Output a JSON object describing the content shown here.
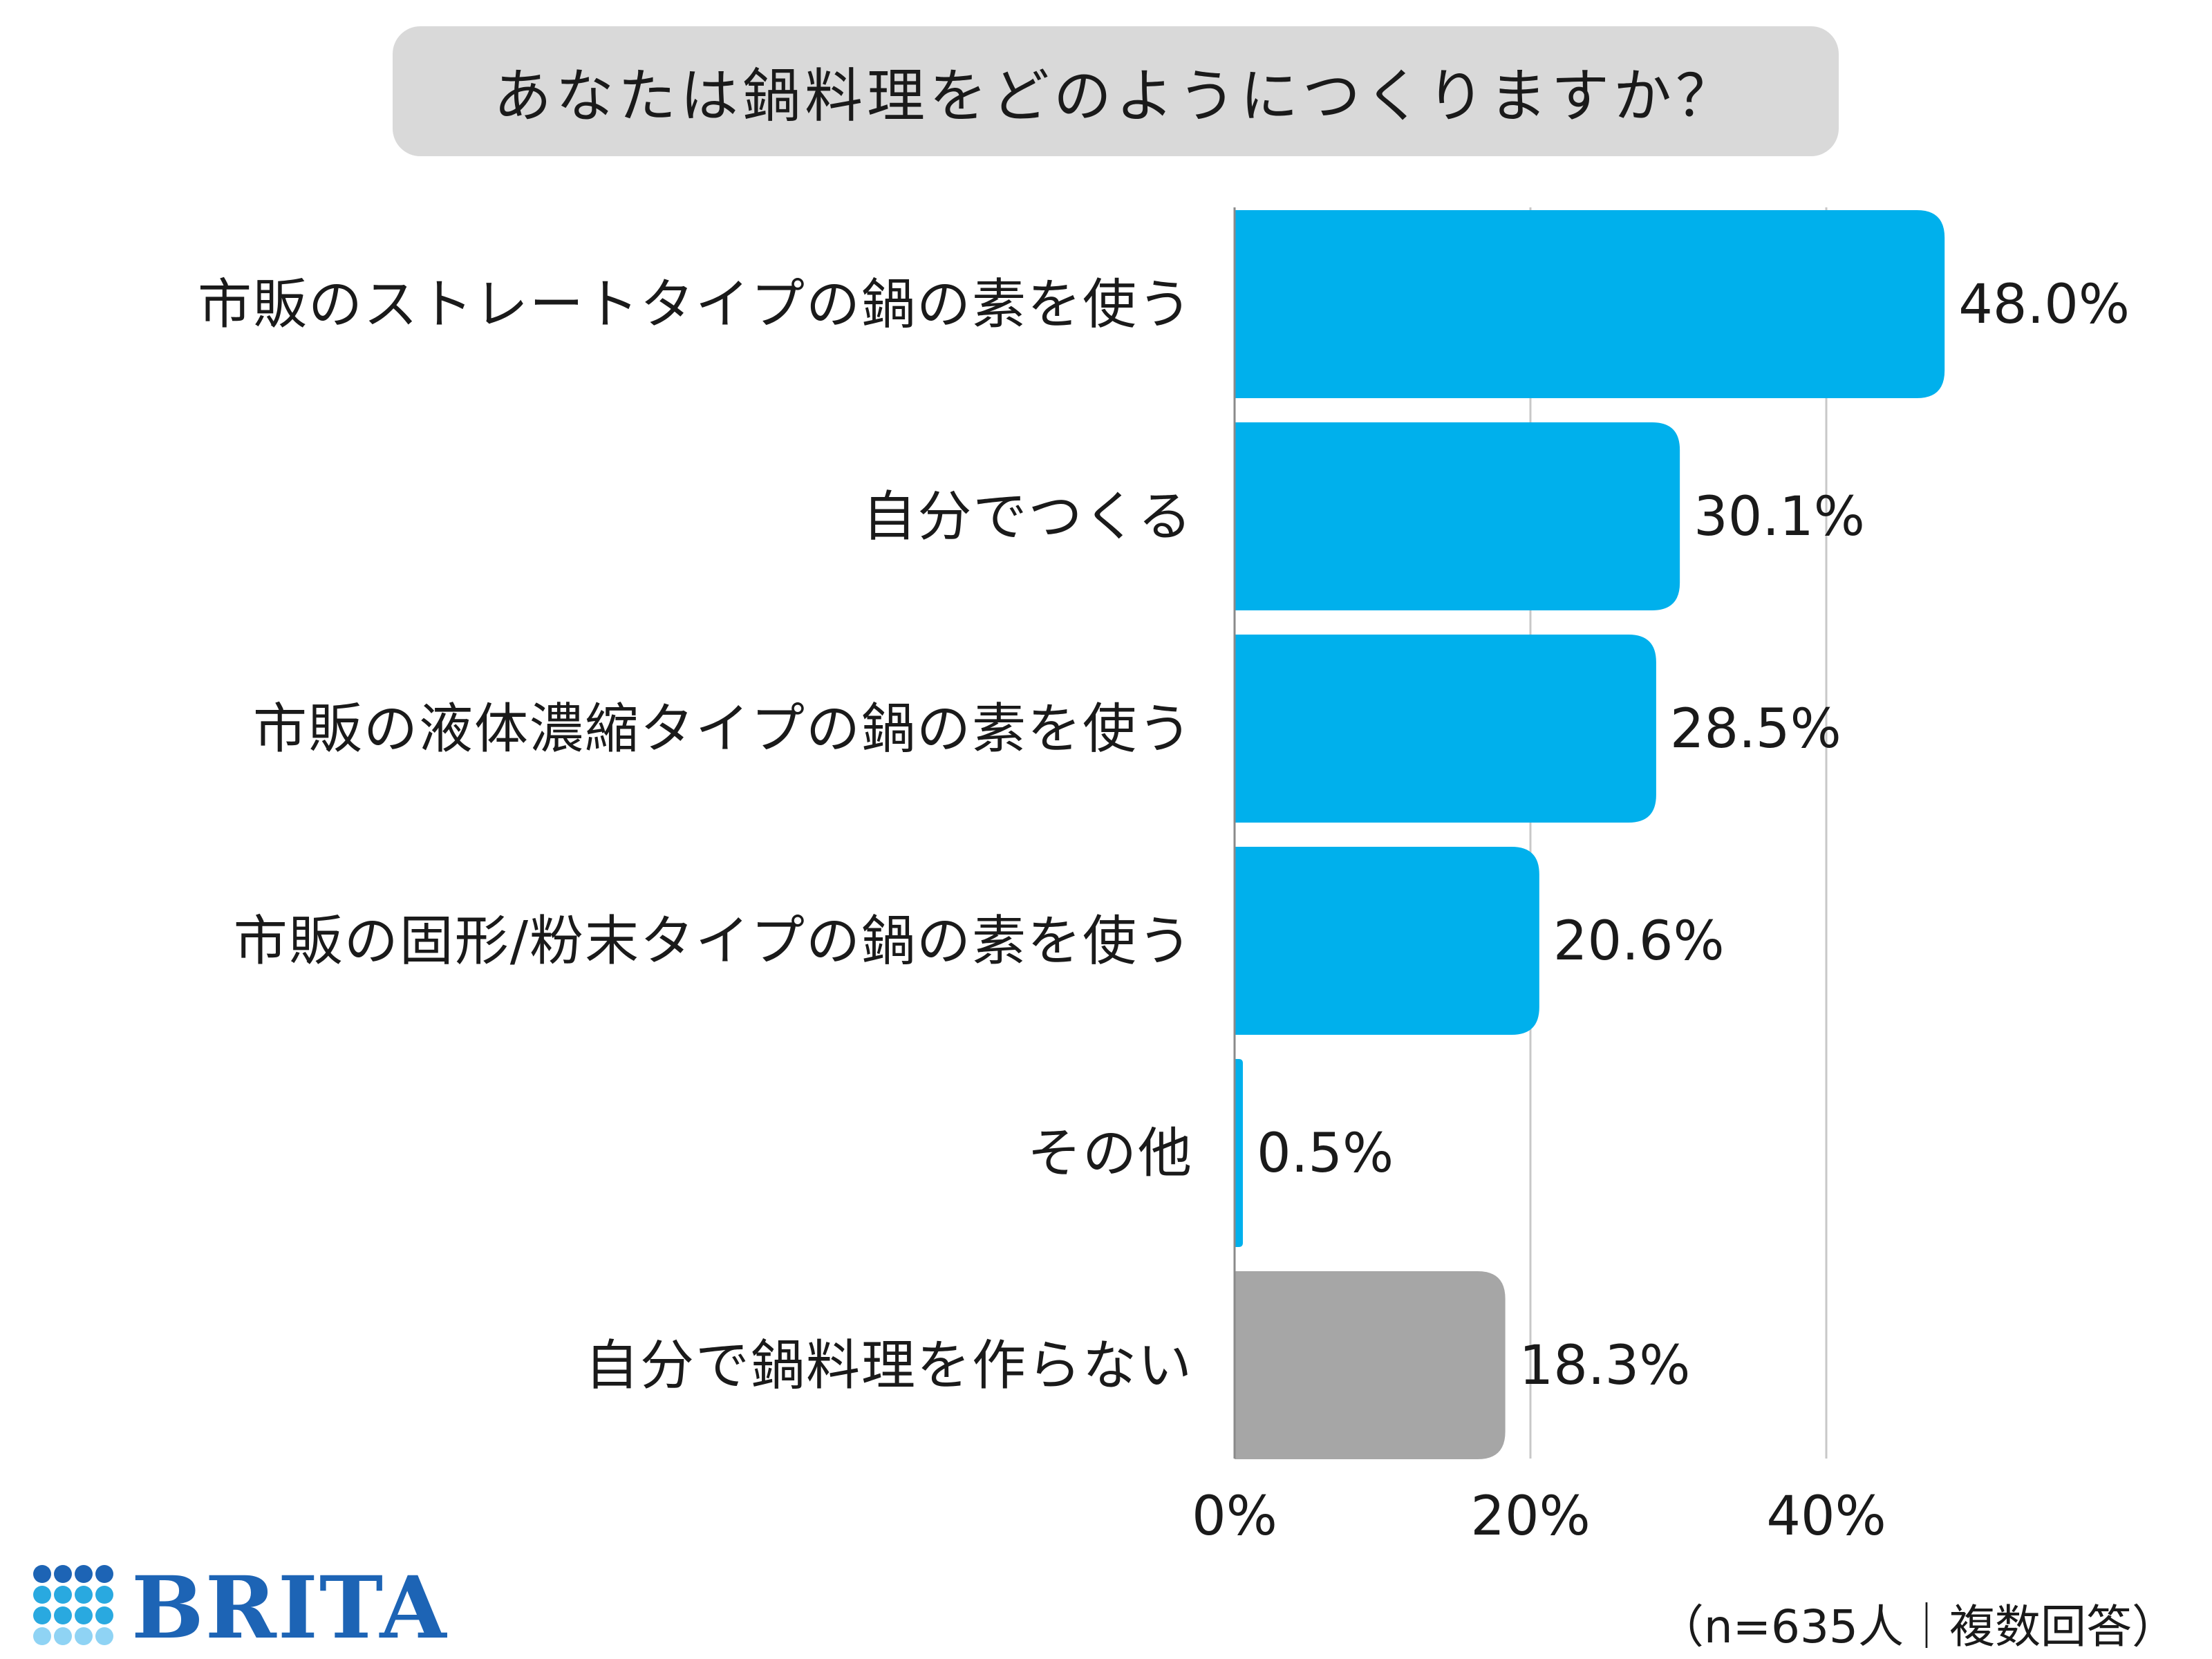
{
  "title": "あなたは鍋料理をどのようにつくりますか？",
  "note": "（n=635人｜複数回答）",
  "logo": {
    "text": "BRITA",
    "dot_colors": [
      "#1d64b5",
      "#29a9e0",
      "#8fd3f4"
    ]
  },
  "colors": {
    "bar": "#00b0ec",
    "bar_none": "#a6a6a6",
    "grid": "#c8c8c8",
    "axis": "#8a8a8a"
  },
  "chart_data": {
    "type": "bar",
    "orientation": "horizontal",
    "categories": [
      "市販のストレートタイプの鍋の素を使う",
      "自分でつくる",
      "市販の液体濃縮タイプの鍋の素を使う",
      "市販の固形/粉末タイプの鍋の素を使う",
      "その他",
      "自分で鍋料理を作らない"
    ],
    "values": [
      48.0,
      30.1,
      28.5,
      20.6,
      0.5,
      18.3
    ],
    "value_labels": [
      "48.0%",
      "30.1%",
      "28.5%",
      "20.6%",
      "0.5%",
      "18.3%"
    ],
    "bar_colors": [
      "#00b0ec",
      "#00b0ec",
      "#00b0ec",
      "#00b0ec",
      "#00b0ec",
      "#a6a6a6"
    ],
    "xlim": [
      0,
      50
    ],
    "xticks": [
      0,
      20,
      40
    ],
    "xtick_labels": [
      "0%",
      "20%",
      "40%"
    ],
    "grid": true
  }
}
